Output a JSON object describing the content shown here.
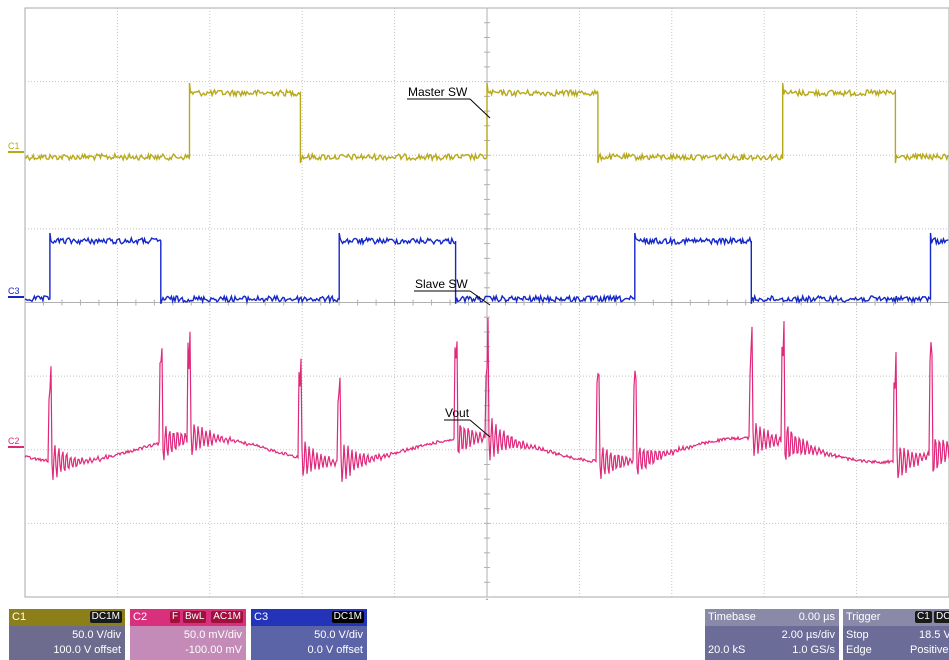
{
  "chart_data": {
    "type": "line",
    "title": "",
    "xlabel": "",
    "ylabel": "",
    "grid": true,
    "x_divisions": 10,
    "y_divisions": 8,
    "series": [
      {
        "name": "C1",
        "label": "Master SW",
        "color": "#b8a91a",
        "level_low": 0,
        "level_high": 1,
        "edges": [
          0,
          1.78,
          2.98,
          5.0,
          6.2,
          8.2,
          9.42,
          10.0
        ]
      },
      {
        "name": "C3",
        "label": "Slave SW",
        "color": "#1427c8",
        "level_low": 0,
        "level_high": 1,
        "edges": [
          0,
          0.27,
          1.47,
          3.4,
          4.66,
          6.6,
          7.86,
          9.8,
          10.0
        ]
      },
      {
        "name": "C2",
        "label": "Vout",
        "color": "#e0287a",
        "spikes_x": [
          0.27,
          1.47,
          1.78,
          2.98,
          3.4,
          4.66,
          5.0,
          6.2,
          6.6,
          7.86,
          8.2,
          9.42,
          9.8
        ]
      }
    ],
    "annotations": [
      "Master SW",
      "Slave SW",
      "Vout"
    ]
  },
  "channel_markers": {
    "c1": "C1",
    "c3": "C3",
    "c2": "C2"
  },
  "panels": {
    "c1": {
      "name": "C1",
      "coupling": "DC1M",
      "scale": "50.0 V/div",
      "offset": "100.0 V offset",
      "color": "#8c7f1a"
    },
    "c2": {
      "name": "C2",
      "filter": "F",
      "bwl": "BwL",
      "coupling": "AC1M",
      "scale": "50.0 mV/div",
      "offset": "-100.00 mV",
      "color": "#d8307c"
    },
    "c3": {
      "name": "C3",
      "coupling": "DC1M",
      "scale": "50.0 V/div",
      "offset": "0.0 V offset",
      "color": "#2434b8"
    },
    "timebase": {
      "label": "Timebase",
      "delay": "0.00 µs",
      "per_div": "2.00 µs/div",
      "samples": "20.0 kS",
      "rate": "1.0 GS/s"
    },
    "trigger": {
      "label": "Trigger",
      "ch": "C1",
      "coupling": "DC",
      "state": "Stop",
      "level": "18.5 V",
      "type": "Edge",
      "slope": "Positive"
    }
  }
}
